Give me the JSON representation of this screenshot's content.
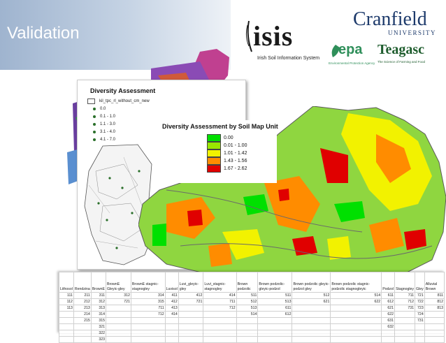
{
  "slide": {
    "title": "Validation"
  },
  "logos": {
    "isis": {
      "word": "isis",
      "subtitle": "Irish Soil Information System"
    },
    "cranfield": {
      "word": "Cranfield",
      "subtitle": "UNIVERSITY"
    },
    "epa": {
      "word": "epa",
      "subtitle": "Environmental Protection Agency"
    },
    "teagasc": {
      "word": "Teagasc",
      "subtitle": "The Science of Farming and Food"
    }
  },
  "card": {
    "title": "Diversity Assessment",
    "layer_label": "kil_tpc_rl_without_cm_new",
    "classes": [
      "0.0",
      "0.1 - 1.0",
      "1.1 - 3.0",
      "3.1 - 4.0",
      "4.1 - 7.0"
    ]
  },
  "main_map": {
    "title": "Diversity Assessment by Soil Map Unit",
    "legend": [
      {
        "label": "0.00",
        "color": "#00e000"
      },
      {
        "label": "0.01 - 1.00",
        "color": "#99e600"
      },
      {
        "label": "1.01 - 1.42",
        "color": "#f2f200"
      },
      {
        "label": "1.43 - 1.56",
        "color": "#ff8c00"
      },
      {
        "label": "1.67 - 2.62",
        "color": "#e00000"
      }
    ]
  },
  "table": {
    "headers": [
      "Lithosol",
      "Rendzina",
      "BrownE",
      "BrownE Gleyic-gley",
      "BrownE stagnic-stagnogley",
      "Luvisol",
      "Luvi_gleyic-gley",
      "Luvi_stagnic-stagnogley",
      "Brown podzolic",
      "Brown podzolic-gleyic-podzol",
      "Brown podzolic gleyic- podzol gley",
      "Brown podzolic stagnic-podzolic stagnogleyic",
      "Podzol",
      "Stagnogley",
      "Gley",
      "Alluvial Brown"
    ],
    "rows": [
      [
        "111",
        "211",
        "311",
        "312",
        "314",
        "411",
        "412",
        "414",
        "511",
        "511",
        "512",
        "514",
        "611",
        "711",
        "721",
        "811"
      ],
      [
        "112",
        "212",
        "312",
        "721",
        "315",
        "412",
        "721",
        "711",
        "512",
        "513",
        "621",
        "622",
        "612",
        "712",
        "722",
        "812"
      ],
      [
        "113",
        "213",
        "313",
        "",
        "711",
        "413",
        "",
        "712",
        "513",
        "611",
        "",
        "",
        "621",
        "731",
        "723",
        "813"
      ],
      [
        "",
        "214",
        "314",
        "",
        "712",
        "414",
        "",
        "",
        "514",
        "612",
        "",
        "",
        "622",
        "",
        "724",
        ""
      ],
      [
        "",
        "215",
        "315",
        "",
        "",
        "",
        "",
        "",
        "",
        "",
        "",
        "",
        "631",
        "",
        "731",
        ""
      ],
      [
        "",
        "",
        "321",
        "",
        "",
        "",
        "",
        "",
        "",
        "",
        "",
        "",
        "632",
        "",
        "",
        ""
      ],
      [
        "",
        "",
        "322",
        "",
        "",
        "",
        "",
        "",
        "",
        "",
        "",
        "",
        "",
        "",
        "",
        ""
      ],
      [
        "",
        "",
        "323",
        "",
        "",
        "",
        "",
        "",
        "",
        "",
        "",
        "",
        "",
        "",
        "",
        ""
      ]
    ]
  }
}
